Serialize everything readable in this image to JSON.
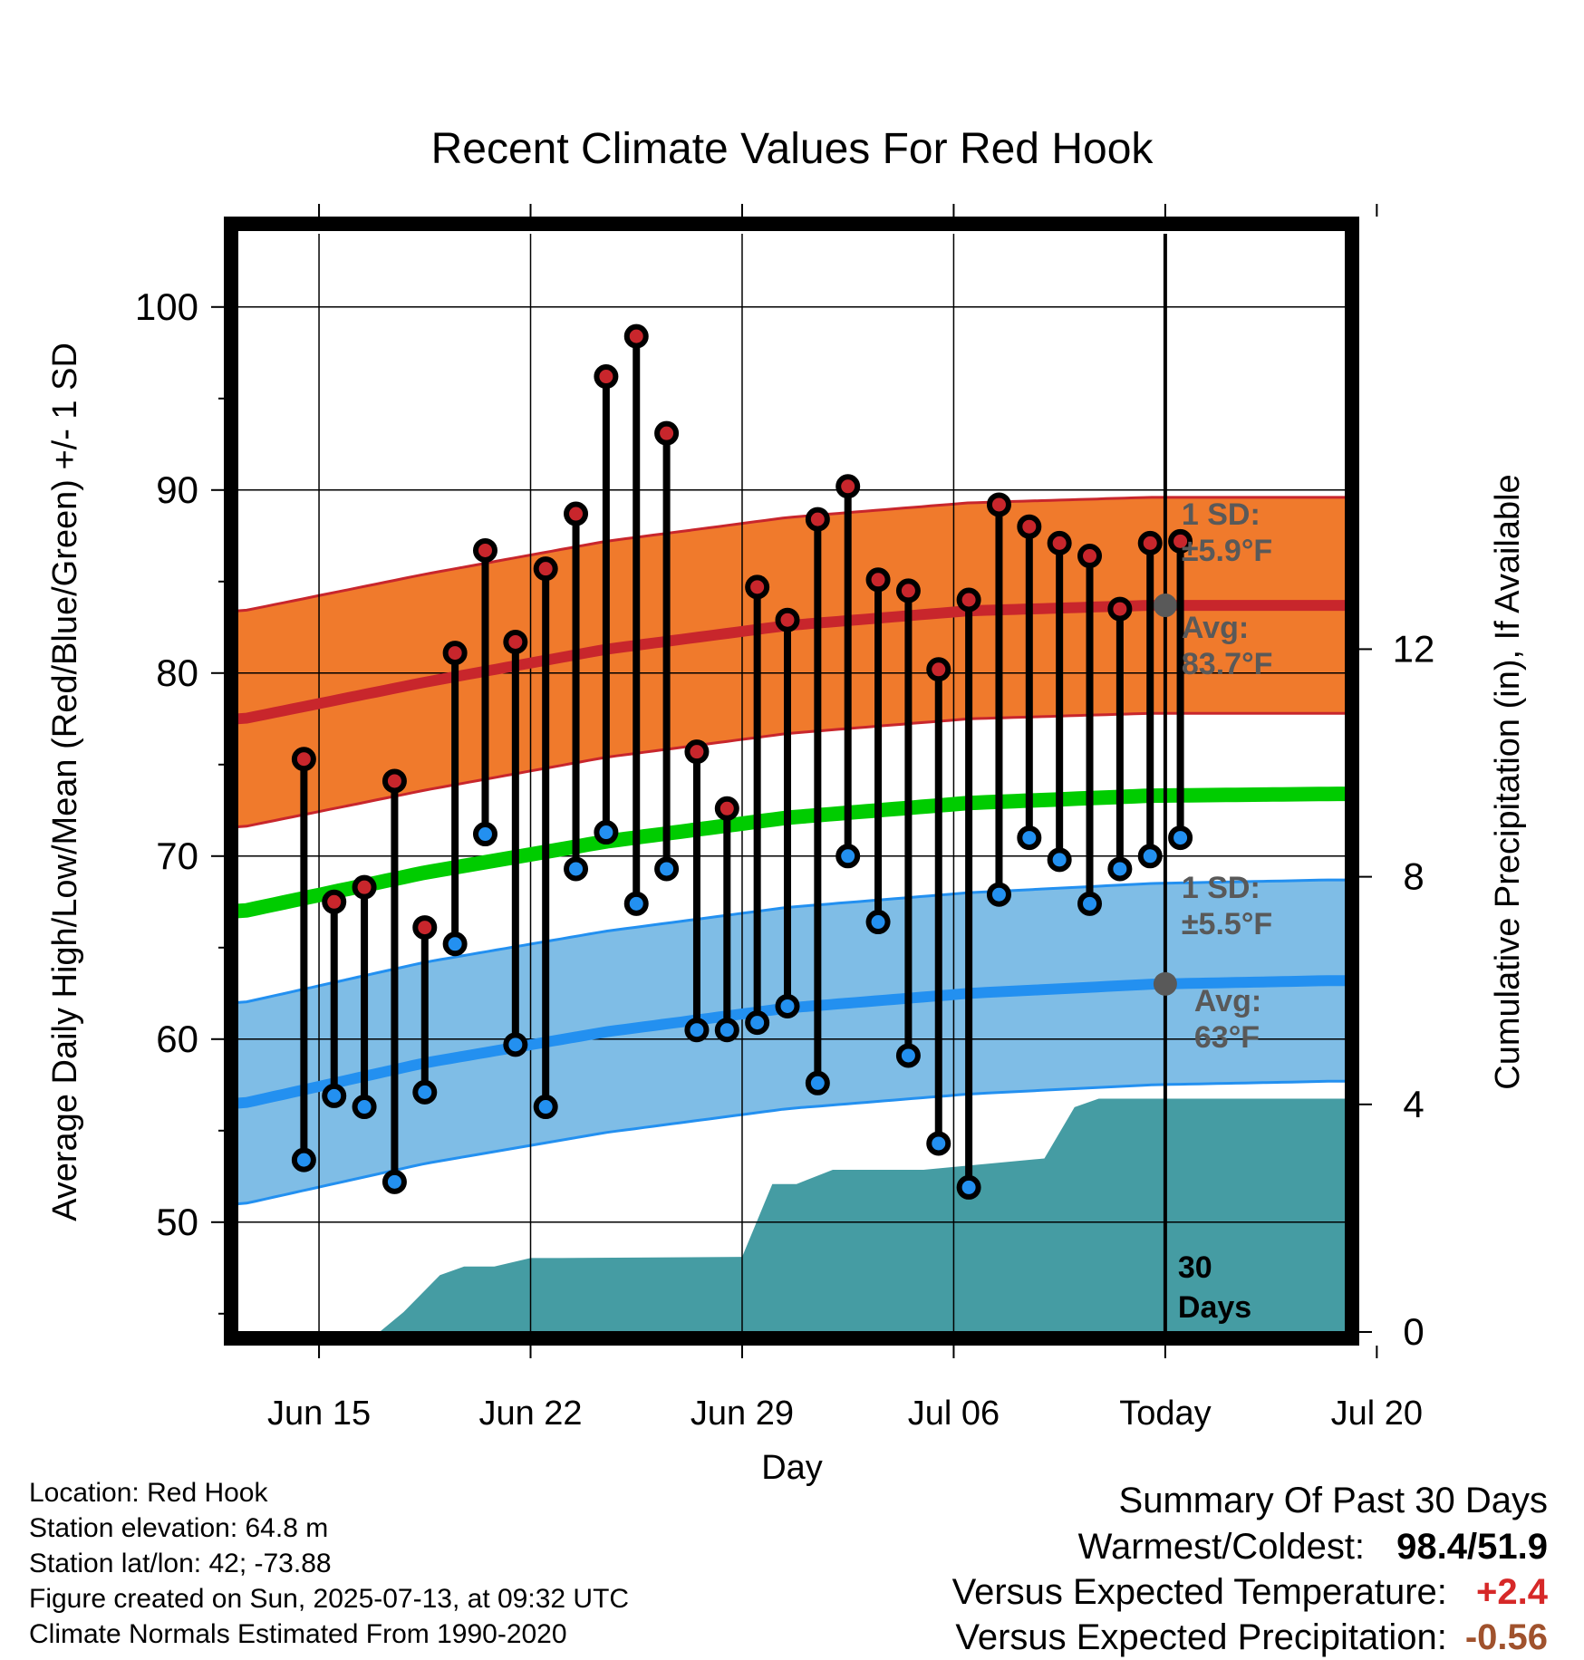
{
  "chart_data": {
    "type": "line",
    "title": "Recent Climate Values For Red Hook",
    "xlabel": "Day",
    "ylabel": "Average Daily High/Low/Mean (Red/Blue/Green) +/- 1 SD",
    "y2label": "Cumulative Precipitation (in), If Available",
    "ylim": [
      44,
      104
    ],
    "y2lim": [
      0,
      19.3
    ],
    "yticks": [
      50,
      60,
      70,
      80,
      90,
      100
    ],
    "y2ticks": [
      0,
      4,
      8,
      12
    ],
    "xlim": [
      -2.2,
      34.5
    ],
    "xticks": [
      {
        "day": 0.5,
        "label": "Jun 15"
      },
      {
        "day": 7.5,
        "label": "Jun 22"
      },
      {
        "day": 14.5,
        "label": "Jun 29"
      },
      {
        "day": 21.5,
        "label": "Jul 06"
      },
      {
        "day": 28.5,
        "label": "Today"
      },
      {
        "day": 35.5,
        "label": "Jul 20"
      }
    ],
    "today_day": 28.5,
    "days_label": "30\nDays",
    "highs": [
      75.3,
      67.5,
      68.3,
      74.1,
      66.1,
      81.1,
      86.7,
      81.7,
      85.7,
      88.7,
      96.2,
      98.4,
      93.1,
      75.7,
      72.6,
      84.7,
      82.9,
      88.4,
      90.2,
      85.1,
      84.5,
      80.2,
      84.0,
      89.2,
      88.0,
      87.1,
      86.4,
      83.5,
      87.1,
      87.2
    ],
    "lows": [
      53.4,
      56.9,
      56.3,
      52.2,
      57.1,
      65.2,
      71.2,
      59.7,
      56.3,
      69.3,
      71.3,
      67.4,
      69.3,
      60.5,
      60.5,
      60.9,
      61.8,
      57.6,
      70.0,
      66.4,
      59.1,
      54.3,
      51.9,
      67.9,
      71.0,
      69.8,
      67.4,
      69.3,
      70.0,
      71.0
    ],
    "normals": {
      "days": [
        -2,
        4,
        10,
        16,
        22,
        28,
        34
      ],
      "high_avg": [
        77.5,
        79.5,
        81.3,
        82.6,
        83.4,
        83.7,
        83.7
      ],
      "high_sd": 5.9,
      "low_avg": [
        56.5,
        58.7,
        60.4,
        61.7,
        62.5,
        63.0,
        63.2
      ],
      "low_sd": 5.5,
      "mean_avg": [
        67.0,
        69.1,
        70.8,
        72.1,
        72.9,
        73.3,
        73.4
      ]
    },
    "precip_cumulative": {
      "days": [
        -1.2,
        2.5,
        3.3,
        4.5,
        5.3,
        6.3,
        7.5,
        8.5,
        14.5,
        15.5,
        16.3,
        17.5,
        18.5,
        19.5,
        20.5,
        24.5,
        25.5,
        26.3,
        27.5,
        28.5,
        34.5
      ],
      "values": [
        0,
        0,
        0.35,
        1.0,
        1.15,
        1.15,
        1.3,
        1.3,
        1.32,
        2.6,
        2.6,
        2.85,
        2.85,
        2.85,
        2.85,
        3.05,
        3.95,
        4.1,
        4.1,
        4.1,
        4.1
      ]
    },
    "annotations": {
      "high_sd": "1 SD:\n±5.9°F",
      "high_avg": "Avg:\n83.7°F",
      "low_sd": "1 SD:\n±5.5°F",
      "low_avg": "Avg:\n63°F"
    },
    "colors": {
      "high": "#c8262c",
      "low": "#2390f0",
      "mean": "#00cc00",
      "high_band": "#f07a2c",
      "low_band": "#7fbde6",
      "precip": "#459ca3",
      "annot": "#595959"
    }
  },
  "info": {
    "location": "Location: Red Hook",
    "elevation": "Station elevation: 64.8 m",
    "latlon": "Station lat/lon: 42; -73.88",
    "created": "Figure created on Sun, 2025-07-13, at 09:32 UTC",
    "normals": "Climate Normals Estimated From 1990-2020"
  },
  "summary": {
    "title": "Summary Of Past 30 Days",
    "warmest_label": "Warmest/Coldest:",
    "warmest_value": "98.4/51.9",
    "temp_label": "Versus Expected Temperature:",
    "temp_value": "+2.4",
    "temp_color": "#d62828",
    "precip_label": "Versus Expected Precipitation:",
    "precip_value": "-0.56",
    "precip_color": "#a0522d"
  }
}
